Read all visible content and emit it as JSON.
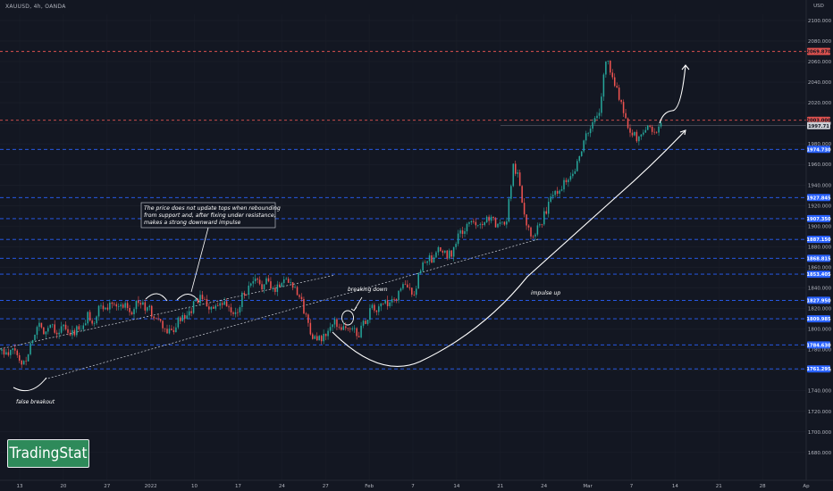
{
  "symbol": "XAUUSD, 4h, OANDA",
  "brand": "TradingStat",
  "chart_data": {
    "type": "candlestick",
    "y_axis": {
      "unit": "USD",
      "range": [
        1653,
        2106
      ],
      "ticks": [
        1680,
        1700,
        1720,
        1740,
        1760,
        1780,
        1800,
        1820,
        1840,
        1860,
        1880,
        1900,
        1920,
        1940,
        1960,
        1980,
        2000,
        2020,
        2040,
        2060,
        2080,
        2100
      ]
    },
    "x_axis": {
      "ticks": [
        "13",
        "20",
        "27",
        "2022",
        "10",
        "17",
        "24",
        "27",
        "Feb",
        "7",
        "14",
        "21",
        "24",
        "Mar",
        "7",
        "14",
        "21",
        "28",
        "Ap"
      ]
    },
    "levels": [
      {
        "value": 2069.87,
        "label": "2069.870",
        "style": "red-dashed"
      },
      {
        "value": 2003.0,
        "label": "2003.000",
        "style": "red-dashed"
      },
      {
        "value": 1997.7,
        "label": "1997.71",
        "style": "current"
      },
      {
        "value": 1974.73,
        "label": "1974.730",
        "style": "blue-dashed"
      },
      {
        "value": 1927.845,
        "label": "1927.845",
        "style": "blue-dashed"
      },
      {
        "value": 1907.35,
        "label": "1907.350",
        "style": "blue-dashed"
      },
      {
        "value": 1887.15,
        "label": "1887.150",
        "style": "blue-dashed"
      },
      {
        "value": 1868.815,
        "label": "1868.815",
        "style": "blue-dashed"
      },
      {
        "value": 1853.405,
        "label": "1853.405",
        "style": "blue-dashed"
      },
      {
        "value": 1827.95,
        "label": "1827.950",
        "style": "blue-dashed"
      },
      {
        "value": 1809.985,
        "label": "1809.985",
        "style": "blue-dashed"
      },
      {
        "value": 1784.63,
        "label": "1784.630",
        "style": "blue-dashed"
      },
      {
        "value": 1761.295,
        "label": "1761.295",
        "style": "blue-dashed"
      }
    ],
    "price_path": [
      1779,
      1773,
      1782,
      1766,
      1772,
      1791,
      1805,
      1797,
      1807,
      1796,
      1803,
      1792,
      1800,
      1798,
      1814,
      1806,
      1823,
      1818,
      1830,
      1820,
      1826,
      1817,
      1828,
      1822,
      1818,
      1810,
      1803,
      1796,
      1800,
      1811,
      1808,
      1822,
      1830,
      1826,
      1820,
      1819,
      1825,
      1818,
      1812,
      1833,
      1838,
      1847,
      1842,
      1846,
      1838,
      1843,
      1850,
      1845,
      1837,
      1819,
      1800,
      1788,
      1790,
      1798,
      1806,
      1803,
      1800,
      1799,
      1796,
      1808,
      1820,
      1818,
      1826,
      1822,
      1830,
      1843,
      1838,
      1836,
      1858,
      1870,
      1864,
      1878,
      1872,
      1874,
      1889,
      1896,
      1902,
      1905,
      1903,
      1910,
      1902,
      1900,
      1908,
      1960,
      1945,
      1905,
      1893,
      1898,
      1910,
      1925,
      1935,
      1940,
      1949,
      1956,
      1974,
      1990,
      2000,
      2010,
      2062,
      2050,
      2030,
      2008,
      1995,
      1985,
      1988,
      1999,
      1992,
      1997
    ],
    "annotations": [
      "The price does not update tops when rebounding from support and, after fixing under resistance, makes a strong downward impulse",
      "breaking down",
      "impulse up",
      "false breakout"
    ]
  }
}
